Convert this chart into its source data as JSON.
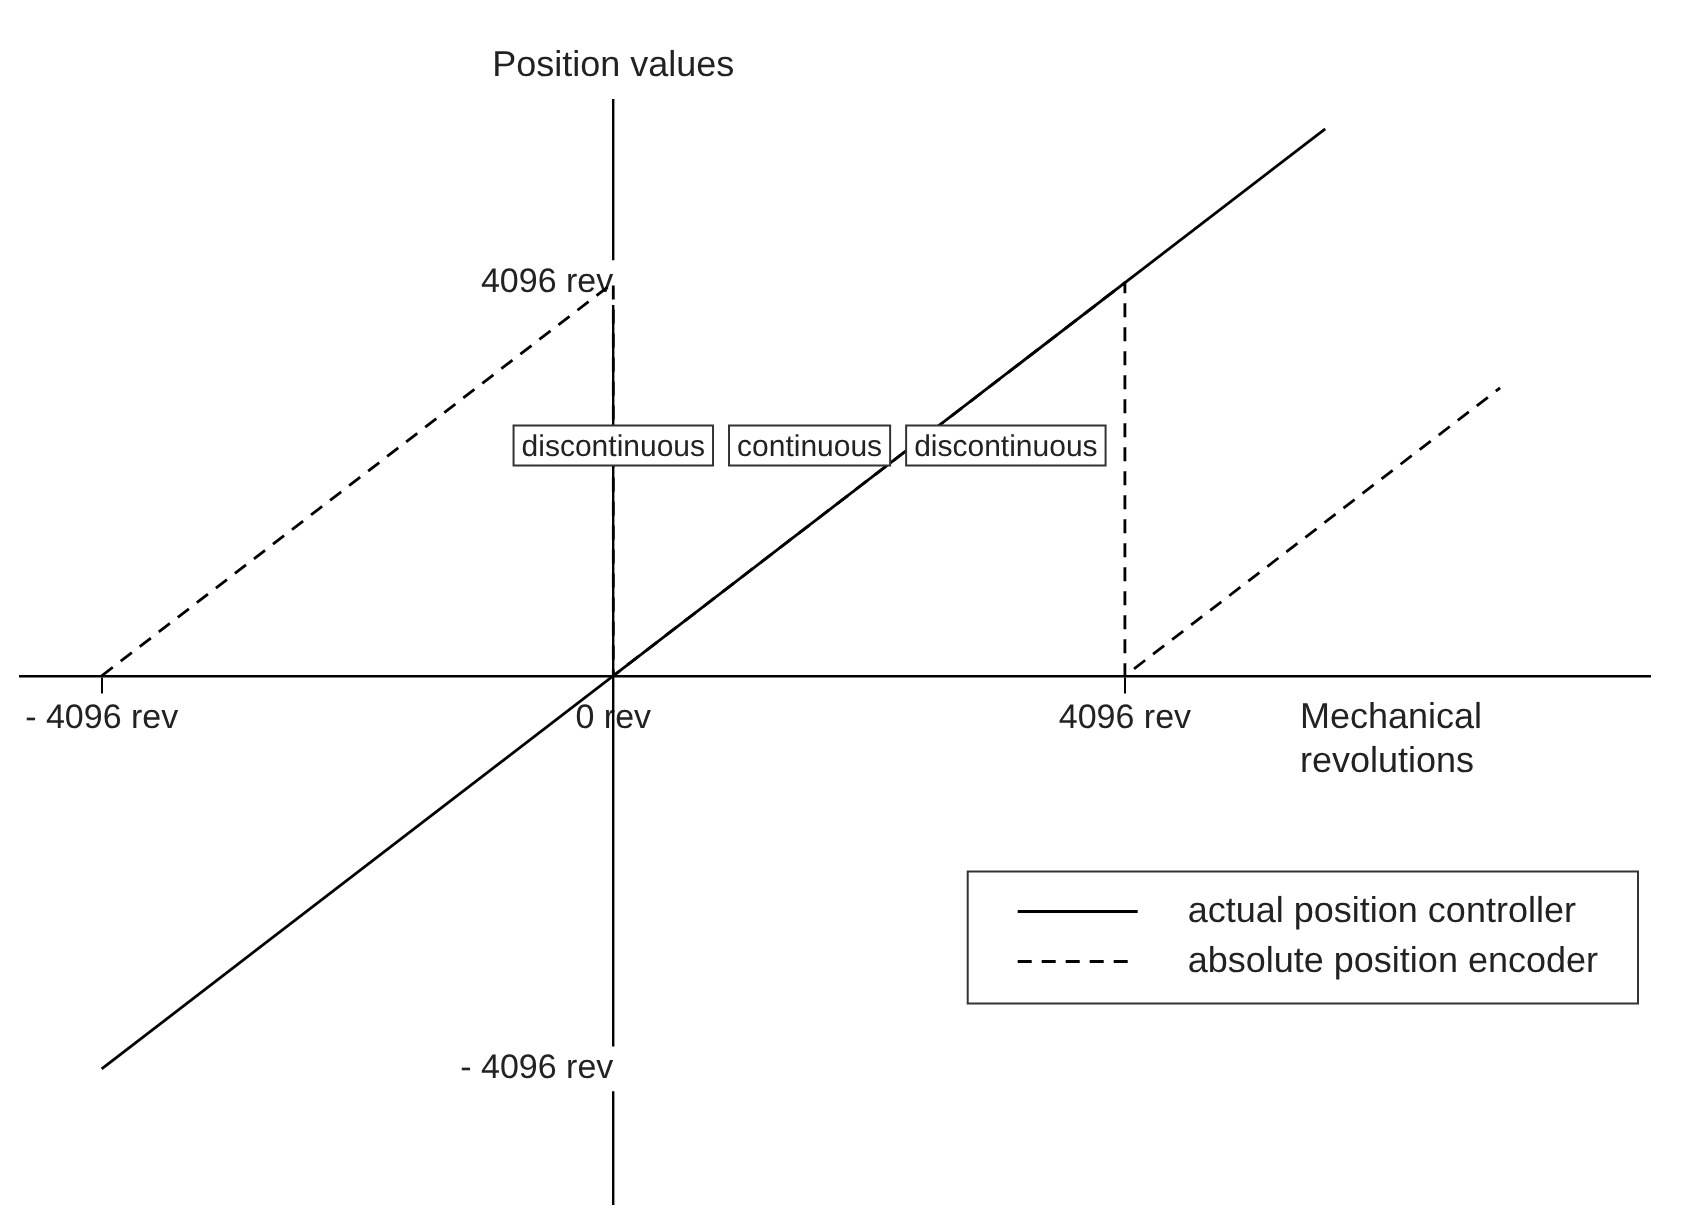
{
  "chart_data": {
    "type": "line",
    "xlabel": "Mechanical revolutions",
    "ylabel": "Position values",
    "xlim": [
      -4750,
      8300
    ],
    "ylim": [
      -5500,
      6000
    ],
    "xticks": [
      {
        "value": -4096,
        "label": "- 4096 rev"
      },
      {
        "value": 0,
        "label": "0 rev"
      },
      {
        "value": 4096,
        "label": "4096 rev"
      }
    ],
    "yticks": [
      {
        "value": -4096,
        "label": "- 4096 rev"
      },
      {
        "value": 4096,
        "label": "4096 rev"
      }
    ],
    "series": [
      {
        "name": "actual position controller",
        "color": "#000000",
        "line_style": "solid",
        "x": [
          -4096,
          5700
        ],
        "values": [
          -4096,
          5700
        ]
      },
      {
        "name": "absolute position encoder",
        "color": "#000000",
        "line_style": "dashed",
        "x": [
          -4096,
          0,
          0,
          4096,
          4096,
          7100
        ],
        "values": [
          0,
          4096,
          0,
          4096,
          0,
          3000
        ]
      }
    ],
    "annotations": [
      "discontinuous",
      "continuous",
      "discontinuous"
    ],
    "grid": false,
    "legend": "bottom right"
  }
}
